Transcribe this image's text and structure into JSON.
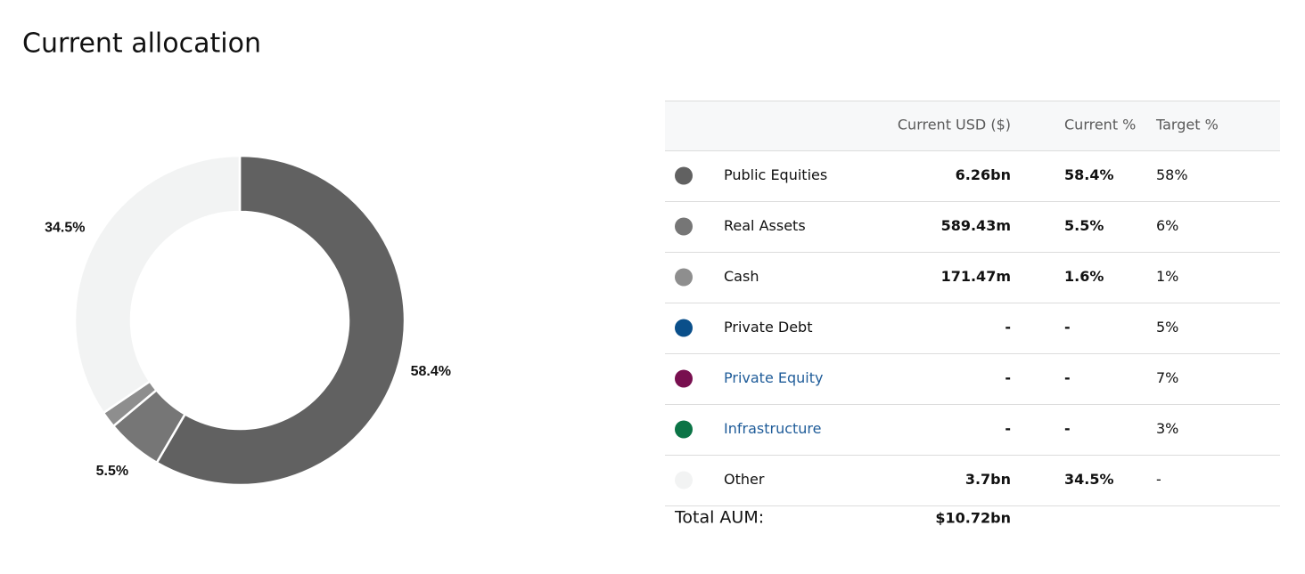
{
  "title": "Current allocation",
  "chart_data": {
    "type": "pie",
    "donut": true,
    "categories": [
      "Public Equities",
      "Real Assets",
      "Cash",
      "Other"
    ],
    "values": [
      58.4,
      5.5,
      1.6,
      34.5
    ],
    "value_labels": [
      "58.4%",
      "5.5%",
      null,
      "34.5%"
    ],
    "colors": [
      "#616161",
      "#767676",
      "#8e8e8e",
      "#f2f3f3"
    ]
  },
  "table": {
    "header": [
      "Current USD ($)",
      "Current %",
      "Target %"
    ],
    "rows": [
      {
        "name": "Public Equities",
        "color": "#616161",
        "usd": "6.26bn",
        "pct": "58.4%",
        "target": "58%",
        "link": false
      },
      {
        "name": "Real Assets",
        "color": "#767676",
        "usd": "589.43m",
        "pct": "5.5%",
        "target": "6%",
        "link": false
      },
      {
        "name": "Cash",
        "color": "#8e8e8e",
        "usd": "171.47m",
        "pct": "1.6%",
        "target": "1%",
        "link": false
      },
      {
        "name": "Private Debt",
        "color": "#0a4f8a",
        "usd": "-",
        "pct": "-",
        "target": "5%",
        "link": false
      },
      {
        "name": "Private Equity",
        "color": "#780f4f",
        "usd": "-",
        "pct": "-",
        "target": "7%",
        "link": true
      },
      {
        "name": "Infrastructure",
        "color": "#0b7446",
        "usd": "-",
        "pct": "-",
        "target": "3%",
        "link": true
      },
      {
        "name": "Other",
        "color": "#f2f3f3",
        "usd": "3.7bn",
        "pct": "34.5%",
        "target": "-",
        "link": false
      }
    ],
    "total": {
      "label": "Total AUM:",
      "value": "$10.72bn"
    }
  }
}
